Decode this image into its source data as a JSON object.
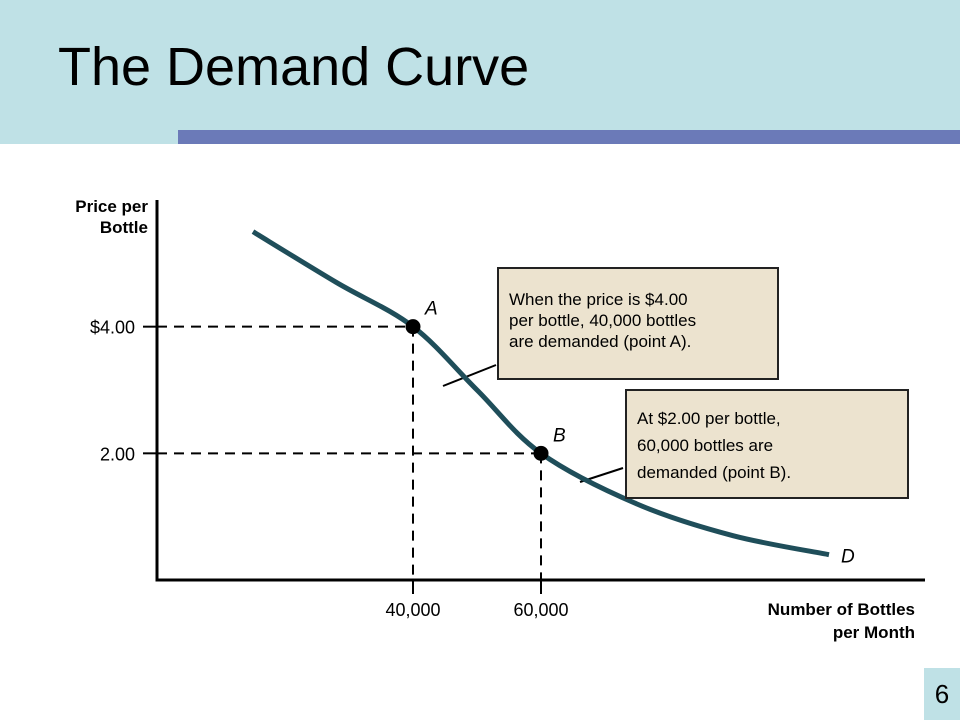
{
  "slide": {
    "title": "The Demand Curve",
    "page_number": "6",
    "colors": {
      "header_band": "#bfe1e6",
      "header_rule": "#6b7ab8",
      "curve": "#1f4e5a",
      "callout_fill": "#ece3cf"
    }
  },
  "chart_data": {
    "type": "line",
    "title": "",
    "ylabel": [
      "Price per",
      "Bottle"
    ],
    "xlabel": [
      "Number of Bottles",
      "per Month"
    ],
    "ylim": [
      0,
      6.0
    ],
    "xlim": [
      0,
      120000
    ],
    "grid": false,
    "series": [
      {
        "name": "D",
        "x": [
          15000,
          28000,
          40000,
          50000,
          60000,
          75000,
          90000,
          105000
        ],
        "y": [
          5.5,
          4.7,
          4.0,
          3.0,
          2.0,
          1.2,
          0.7,
          0.4
        ]
      }
    ],
    "points": [
      {
        "label": "A",
        "x": 40000,
        "y": 4.0
      },
      {
        "label": "B",
        "x": 60000,
        "y": 2.0
      }
    ],
    "y_ticks": [
      {
        "value": 4.0,
        "label": "$4.00"
      },
      {
        "value": 2.0,
        "label": "2.00"
      }
    ],
    "x_ticks": [
      {
        "value": 40000,
        "label": "40,000"
      },
      {
        "value": 60000,
        "label": "60,000"
      }
    ],
    "annotations": {
      "a": [
        "When the price is $4.00",
        "per bottle, 40,000 bottles",
        "are demanded (point A)."
      ],
      "b": [
        "At $2.00 per bottle,",
        "60,000 bottles are",
        "demanded (point B)."
      ]
    }
  }
}
